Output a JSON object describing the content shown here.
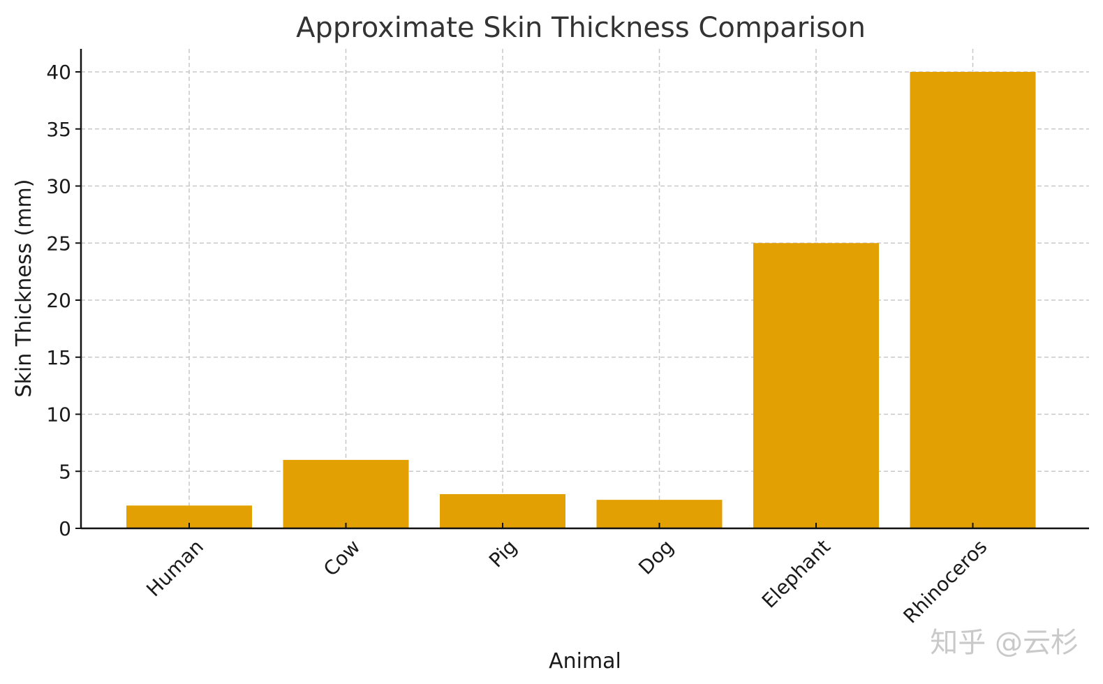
{
  "chart_data": {
    "type": "bar",
    "title": "Approximate Skin Thickness Comparison",
    "xlabel": "Animal",
    "ylabel": "Skin Thickness (mm)",
    "categories": [
      "Human",
      "Cow",
      "Pig",
      "Dog",
      "Elephant",
      "Rhinoceros"
    ],
    "values": [
      2,
      6,
      3,
      2.5,
      25,
      40
    ],
    "ylim": [
      0,
      42
    ],
    "yticks": [
      0,
      5,
      10,
      15,
      20,
      25,
      30,
      35,
      40
    ],
    "grid": true,
    "bar_color": "#E3A002"
  },
  "watermark": "知乎 @云杉"
}
